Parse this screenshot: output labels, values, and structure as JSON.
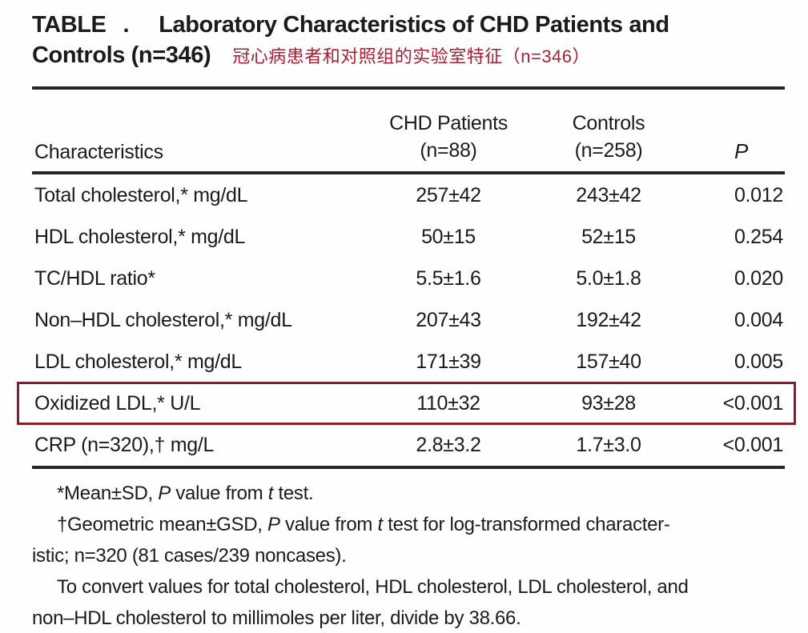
{
  "header": {
    "table_word": "TABLE",
    "table_dot": ".",
    "title_line1": "Laboratory Characteristics of CHD Patients and",
    "title_line2": "Controls (n=346)",
    "subtitle_cn": "冠心病患者和对照组的实验室特征（n=346）"
  },
  "colors": {
    "highlight_border": "#8b1c2c",
    "subtitle_red": "#a81e34",
    "rule_black": "#272727"
  },
  "table": {
    "header": {
      "characteristics": "Characteristics",
      "chd_line1": "CHD Patients",
      "chd_line2": "(n=88)",
      "controls_line1": "Controls",
      "controls_line2": "(n=258)",
      "p": "P"
    },
    "rows": [
      {
        "label": "Total cholesterol,* mg/dL",
        "chd": "257±42",
        "controls": "243±42",
        "p": "0.012",
        "highlighted": false
      },
      {
        "label": "HDL cholesterol,* mg/dL",
        "chd": "50±15",
        "controls": "52±15",
        "p": "0.254",
        "highlighted": false
      },
      {
        "label": "TC/HDL ratio*",
        "chd": "5.5±1.6",
        "controls": "5.0±1.8",
        "p": "0.020",
        "highlighted": false
      },
      {
        "label": "Non–HDL cholesterol,* mg/dL",
        "chd": "207±43",
        "controls": "192±42",
        "p": "0.004",
        "highlighted": false
      },
      {
        "label": "LDL cholesterol,* mg/dL",
        "chd": "171±39",
        "controls": "157±40",
        "p": "0.005",
        "highlighted": false
      },
      {
        "label": "Oxidized LDL,* U/L",
        "chd": "110±32",
        "controls": "93±28",
        "p": "<0.001",
        "highlighted": true
      },
      {
        "label": "CRP (n=320),† mg/L",
        "chd": "2.8±3.2",
        "controls": "1.7±3.0",
        "p": "<0.001",
        "highlighted": false
      }
    ]
  },
  "footnotes": {
    "line1": [
      {
        "t": "*Mean±SD, "
      },
      {
        "t": "P",
        "i": true
      },
      {
        "t": " value from "
      },
      {
        "t": "t",
        "i": true
      },
      {
        "t": " test."
      }
    ],
    "line2": [
      {
        "t": "†Geometric mean±GSD, "
      },
      {
        "t": "P",
        "i": true
      },
      {
        "t": " value from "
      },
      {
        "t": "t",
        "i": true
      },
      {
        "t": " test for log-transformed character-"
      },
      {
        "br": true
      },
      {
        "t": "istic; n=320 (81 cases/239 noncases)."
      }
    ],
    "line3": [
      {
        "t": "To convert values for total cholesterol, HDL cholesterol, LDL cholesterol, and"
      },
      {
        "br": true
      },
      {
        "t": "non–HDL cholesterol to millimoles per liter, divide by 38.66."
      }
    ]
  }
}
